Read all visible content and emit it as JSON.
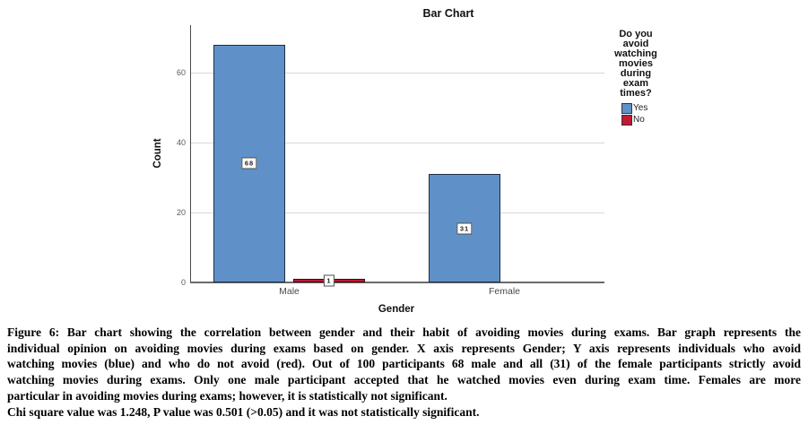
{
  "page": {
    "background": "#ffffff"
  },
  "chart_data": {
    "type": "bar",
    "title": "Bar Chart",
    "xlabel": "Gender",
    "ylabel": "Count",
    "categories": [
      "Male",
      "Female"
    ],
    "series": [
      {
        "name": "Yes",
        "color": "#6090c8",
        "border": "#1f2d45",
        "values": [
          68,
          31
        ]
      },
      {
        "name": "No",
        "color": "#c01a33",
        "border": "#42040f",
        "values": [
          1,
          0
        ]
      }
    ],
    "ylim": [
      0,
      73
    ],
    "yticks": [
      0,
      20,
      40,
      60
    ],
    "grid": true,
    "bar_labels": true,
    "legend_position": "right",
    "legend": {
      "title": "Do you avoid watching movies during exam times?",
      "title_lines": [
        "Do you",
        "avoid",
        "watching",
        "movies",
        "during",
        "exam",
        "times?"
      ]
    }
  },
  "caption": {
    "lines": [
      {
        "text": "Figure 6: Bar chart showing the correlation between gender and their habit of avoiding movies during exams. Bar graph represents the",
        "justify": true
      },
      {
        "text": "individual opinion on avoiding movies during exams based on gender. X axis represents Gender; Y axis represents individuals who avoid",
        "justify": true
      },
      {
        "text": "watching movies (blue) and who do not avoid (red). Out of 100 participants 68 male and all (31) of the female participants strictly avoid",
        "justify": true
      },
      {
        "text": "watching movies during exams. Only one male participant accepted that he watched movies even during exam time. Females are more",
        "justify": true
      },
      {
        "text": "particular in avoiding movies during exams; however, it is statistically not significant.",
        "justify": false
      },
      {
        "text": "Chi square value was 1.248, P value was 0.501 (>0.05) and it was not statistically significant.",
        "justify": false
      }
    ]
  }
}
